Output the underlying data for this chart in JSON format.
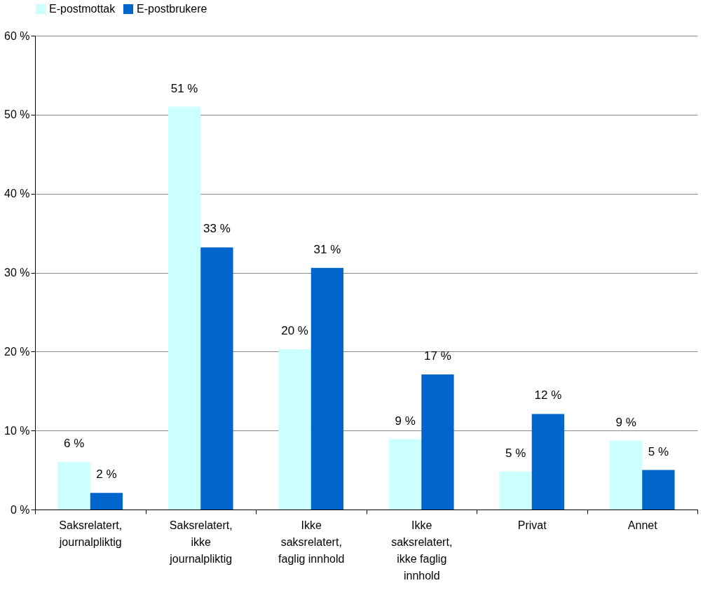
{
  "chart_data": {
    "type": "bar",
    "categories": [
      "Saksrelatert, journalpliktig",
      "Saksrelatert, ikke journalpliktig",
      "Ikke saksrelatert, faglig innhold",
      "Ikke saksrelatert, ikke faglig innhold",
      "Privat",
      "Annet"
    ],
    "series": [
      {
        "name": "E-postmottak",
        "color": "#ccffff",
        "values": [
          6.0,
          51.0,
          20.3,
          8.9,
          4.8,
          8.7
        ],
        "value_labels": [
          "6 %",
          "51 %",
          "20 %",
          "9 %",
          "5 %",
          "9 %"
        ]
      },
      {
        "name": "E-postbrukere",
        "color": "#0066cc",
        "values": [
          2.1,
          33.2,
          30.6,
          17.1,
          12.1,
          5.0
        ],
        "value_labels": [
          "2 %",
          "33 %",
          "31 %",
          "17 %",
          "12 %",
          "5 %"
        ]
      }
    ],
    "ylim": [
      0,
      60
    ],
    "yticks": [
      {
        "value": 0,
        "label": "0 %"
      },
      {
        "value": 10,
        "label": "10 %"
      },
      {
        "value": 20,
        "label": "20 %"
      },
      {
        "value": 30,
        "label": "30 %"
      },
      {
        "value": 40,
        "label": "40 %"
      },
      {
        "value": 50,
        "label": "50 %"
      },
      {
        "value": 60,
        "label": "60 %"
      }
    ],
    "grid": "y",
    "legend": "top"
  }
}
